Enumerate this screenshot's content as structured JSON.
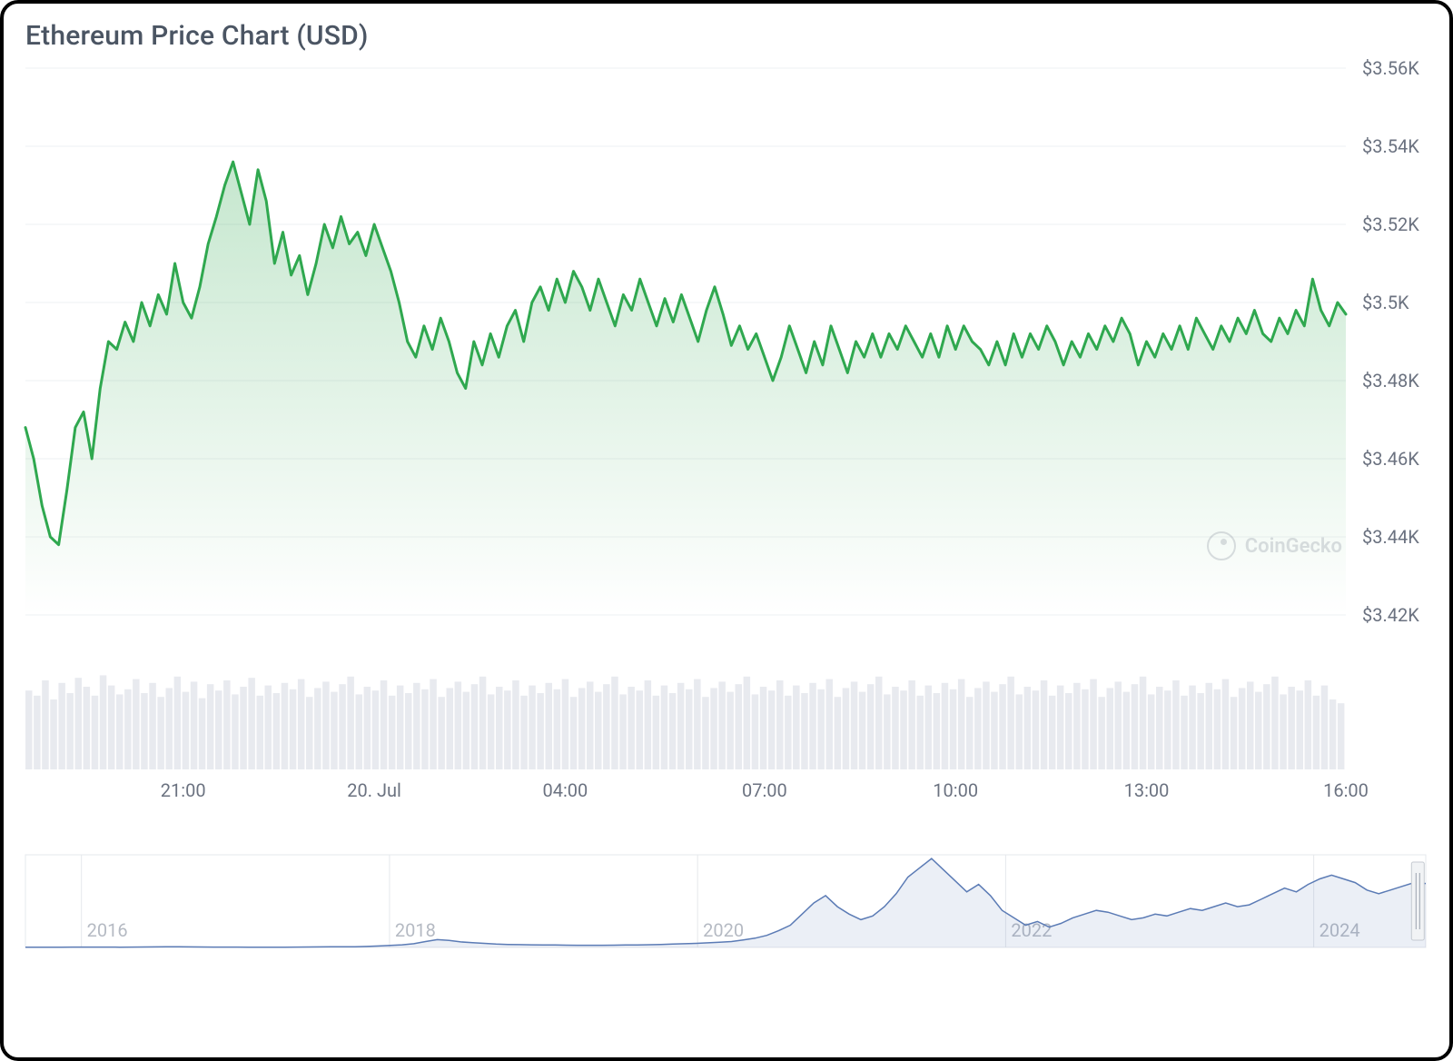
{
  "title": "Ethereum Price Chart (USD)",
  "watermark": "CoinGecko",
  "main_chart": {
    "type": "area",
    "line_color": "#2fa84f",
    "line_width": 3,
    "fill_top_color": "rgba(47,168,79,0.28)",
    "fill_bottom_color": "rgba(47,168,79,0.0)",
    "background_color": "#ffffff",
    "grid_color": "#eef0f3",
    "y_axis": {
      "min": 3420,
      "max": 3560,
      "ticks": [
        3420,
        3440,
        3460,
        3480,
        3500,
        3520,
        3540,
        3560
      ],
      "tick_labels": [
        "$3.42K",
        "$3.44K",
        "$3.46K",
        "$3.48K",
        "$3.5K",
        "$3.52K",
        "$3.54K",
        "$3.56K"
      ],
      "label_color": "#6b7280",
      "label_fontsize": 20
    },
    "x_axis": {
      "ticks": [
        19,
        42,
        65,
        89,
        112,
        135,
        159
      ],
      "tick_labels": [
        "21:00",
        "20. Jul",
        "04:00",
        "07:00",
        "10:00",
        "13:00",
        "16:00"
      ],
      "label_color": "#6b7280",
      "label_fontsize": 20
    },
    "series": [
      3468,
      3460,
      3448,
      3440,
      3438,
      3452,
      3468,
      3472,
      3460,
      3478,
      3490,
      3488,
      3495,
      3490,
      3500,
      3494,
      3502,
      3497,
      3510,
      3500,
      3496,
      3504,
      3515,
      3522,
      3530,
      3536,
      3528,
      3520,
      3534,
      3526,
      3510,
      3518,
      3507,
      3512,
      3502,
      3510,
      3520,
      3514,
      3522,
      3515,
      3518,
      3512,
      3520,
      3514,
      3508,
      3500,
      3490,
      3486,
      3494,
      3488,
      3496,
      3490,
      3482,
      3478,
      3490,
      3484,
      3492,
      3486,
      3494,
      3498,
      3490,
      3500,
      3504,
      3498,
      3506,
      3500,
      3508,
      3504,
      3498,
      3506,
      3500,
      3494,
      3502,
      3498,
      3506,
      3500,
      3494,
      3501,
      3495,
      3502,
      3496,
      3490,
      3498,
      3504,
      3497,
      3489,
      3494,
      3488,
      3492,
      3486,
      3480,
      3486,
      3494,
      3488,
      3482,
      3490,
      3484,
      3494,
      3488,
      3482,
      3490,
      3486,
      3492,
      3486,
      3492,
      3488,
      3494,
      3490,
      3486,
      3492,
      3486,
      3494,
      3488,
      3494,
      3490,
      3488,
      3484,
      3490,
      3484,
      3492,
      3486,
      3492,
      3488,
      3494,
      3490,
      3484,
      3490,
      3486,
      3492,
      3488,
      3494,
      3490,
      3496,
      3492,
      3484,
      3490,
      3486,
      3492,
      3488,
      3494,
      3488,
      3496,
      3492,
      3488,
      3494,
      3490,
      3496,
      3492,
      3498,
      3492,
      3490,
      3496,
      3492,
      3498,
      3494,
      3506,
      3498,
      3494,
      3500,
      3497
    ]
  },
  "volume_chart": {
    "type": "bar",
    "bar_color": "#e8eaef",
    "background_color": "#ffffff",
    "max": 100,
    "values": [
      62,
      58,
      70,
      55,
      68,
      60,
      72,
      65,
      58,
      74,
      66,
      59,
      63,
      71,
      60,
      68,
      57,
      64,
      73,
      61,
      69,
      56,
      67,
      62,
      70,
      59,
      65,
      72,
      58,
      66,
      60,
      68,
      63,
      71,
      57,
      64,
      69,
      61,
      67,
      73,
      59,
      65,
      62,
      70,
      58,
      66,
      60,
      68,
      63,
      71,
      57,
      64,
      69,
      61,
      67,
      73,
      59,
      65,
      62,
      70,
      58,
      66,
      60,
      68,
      63,
      71,
      57,
      64,
      69,
      61,
      67,
      73,
      59,
      65,
      62,
      70,
      58,
      66,
      60,
      68,
      63,
      71,
      57,
      64,
      69,
      61,
      67,
      73,
      59,
      65,
      62,
      70,
      58,
      66,
      60,
      68,
      63,
      71,
      57,
      64,
      69,
      61,
      67,
      73,
      59,
      65,
      62,
      70,
      58,
      66,
      60,
      68,
      63,
      71,
      57,
      64,
      69,
      61,
      67,
      73,
      59,
      65,
      62,
      70,
      58,
      66,
      60,
      68,
      63,
      71,
      57,
      64,
      69,
      61,
      67,
      73,
      59,
      65,
      62,
      70,
      58,
      66,
      60,
      68,
      63,
      71,
      57,
      64,
      69,
      61,
      67,
      73,
      59,
      65,
      62,
      70,
      58,
      66,
      55,
      52
    ]
  },
  "navigator": {
    "type": "area",
    "line_color": "#5b7bb5",
    "line_width": 1.5,
    "fill_color": "rgba(91,123,181,0.12)",
    "grid_color": "#e5e8ec",
    "years": [
      "2016",
      "2018",
      "2020",
      "2022",
      "2024"
    ],
    "year_positions": [
      0.04,
      0.26,
      0.48,
      0.7,
      0.92
    ],
    "y_max": 5000,
    "series": [
      10,
      12,
      14,
      15,
      18,
      20,
      22,
      18,
      16,
      20,
      25,
      30,
      35,
      32,
      28,
      25,
      22,
      20,
      18,
      16,
      14,
      15,
      17,
      20,
      24,
      28,
      32,
      36,
      40,
      55,
      80,
      110,
      140,
      200,
      320,
      420,
      380,
      300,
      260,
      220,
      180,
      160,
      150,
      140,
      135,
      130,
      125,
      120,
      118,
      120,
      125,
      130,
      135,
      145,
      160,
      180,
      200,
      220,
      250,
      280,
      320,
      400,
      500,
      650,
      900,
      1200,
      1800,
      2400,
      2800,
      2200,
      1800,
      1500,
      1700,
      2200,
      2900,
      3800,
      4300,
      4800,
      4200,
      3600,
      3000,
      3400,
      2800,
      2000,
      1600,
      1200,
      1400,
      1100,
      1300,
      1600,
      1800,
      2000,
      1900,
      1700,
      1500,
      1600,
      1800,
      1700,
      1900,
      2100,
      2000,
      2200,
      2400,
      2200,
      2300,
      2600,
      2900,
      3200,
      3000,
      3400,
      3700,
      3900,
      3700,
      3500,
      3100,
      2900,
      3100,
      3300,
      3500,
      3450
    ],
    "handle_position": 0.995
  }
}
